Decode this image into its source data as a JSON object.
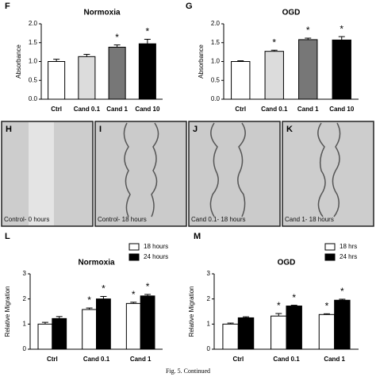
{
  "chart_data": [
    {
      "type": "bar",
      "panel": "F",
      "title": "Normoxia",
      "y_label": "Absorbance",
      "categories": [
        "Ctrl",
        "Cand 0.1",
        "Cand 1",
        "Cand 10"
      ],
      "series": [
        {
          "colors": [
            "#ffffff",
            "#dcdcdc",
            "#777777",
            "#000000"
          ],
          "values": [
            1.0,
            1.13,
            1.38,
            1.47
          ],
          "errors": [
            0.06,
            0.06,
            0.06,
            0.12
          ],
          "significance": [
            null,
            null,
            "*",
            "*"
          ]
        }
      ],
      "ylim": [
        0,
        2
      ],
      "yticks": [
        {
          "value": 0,
          "label": "0.0"
        },
        0.5,
        {
          "value": 1,
          "label": "1.0"
        },
        1.5,
        {
          "value": 2,
          "label": "2.0"
        }
      ]
    },
    {
      "type": "bar",
      "panel": "G",
      "title": "OGD",
      "y_label": "Absorbance",
      "categories": [
        "Ctrl",
        "Cand 0.1",
        "Cand 1",
        "Cand 10"
      ],
      "series": [
        {
          "colors": [
            "#ffffff",
            "#dcdcdc",
            "#777777",
            "#000000"
          ],
          "values": [
            1.0,
            1.27,
            1.58,
            1.57
          ],
          "errors": [
            0.02,
            0.03,
            0.04,
            0.09
          ],
          "significance": [
            null,
            "*",
            "*",
            "*"
          ]
        }
      ],
      "ylim": [
        0,
        2
      ],
      "yticks": [
        {
          "value": 0,
          "label": "0.0"
        },
        0.5,
        {
          "value": 1,
          "label": "1.0"
        },
        1.5,
        {
          "value": 2,
          "label": "2.0"
        }
      ]
    },
    {
      "type": "bar",
      "panel": "L",
      "title": "Normoxia",
      "y_label": "Relative Migration",
      "legend": "upper right",
      "categories": [
        "Ctrl",
        "Cand 0.1",
        "Cand 1"
      ],
      "series": [
        {
          "name": "18 hours",
          "color": "#ffffff",
          "values": [
            1.0,
            1.58,
            1.82
          ],
          "errors": [
            0.07,
            0.06,
            0.05
          ],
          "significance": [
            null,
            "*",
            "*"
          ]
        },
        {
          "name": "24 hours",
          "color": "#000000",
          "values": [
            1.22,
            2.0,
            2.12
          ],
          "errors": [
            0.08,
            0.1,
            0.06
          ],
          "significance": [
            null,
            "*",
            "*"
          ]
        }
      ],
      "ylim": [
        0,
        3
      ],
      "yticks": [
        0,
        1,
        2,
        3
      ]
    },
    {
      "type": "bar",
      "panel": "M",
      "title": "OGD",
      "y_label": "Relative Migration",
      "legend": "upper right",
      "categories": [
        "Ctrl",
        "Cand 0.1",
        "Cand 1"
      ],
      "series": [
        {
          "name": "18 hrs",
          "color": "#ffffff",
          "values": [
            1.0,
            1.32,
            1.38
          ],
          "errors": [
            0.04,
            0.1,
            0.03
          ],
          "significance": [
            null,
            "*",
            "*"
          ]
        },
        {
          "name": "24 hrs",
          "color": "#000000",
          "values": [
            1.25,
            1.72,
            1.95
          ],
          "errors": [
            0.04,
            0.03,
            0.04
          ],
          "significance": [
            null,
            "*",
            "*"
          ]
        }
      ],
      "ylim": [
        0,
        3
      ],
      "yticks": [
        0,
        1,
        2,
        3
      ]
    }
  ],
  "images": [
    {
      "label": "H",
      "caption": "Control- 0 hours"
    },
    {
      "label": "I",
      "caption": "Control- 18 hours"
    },
    {
      "label": "J",
      "caption": "Cand 0.1- 18 hours"
    },
    {
      "label": "K",
      "caption": "Cand 1- 18 hours"
    }
  ],
  "figure_caption": "Fig. 5. Continued"
}
